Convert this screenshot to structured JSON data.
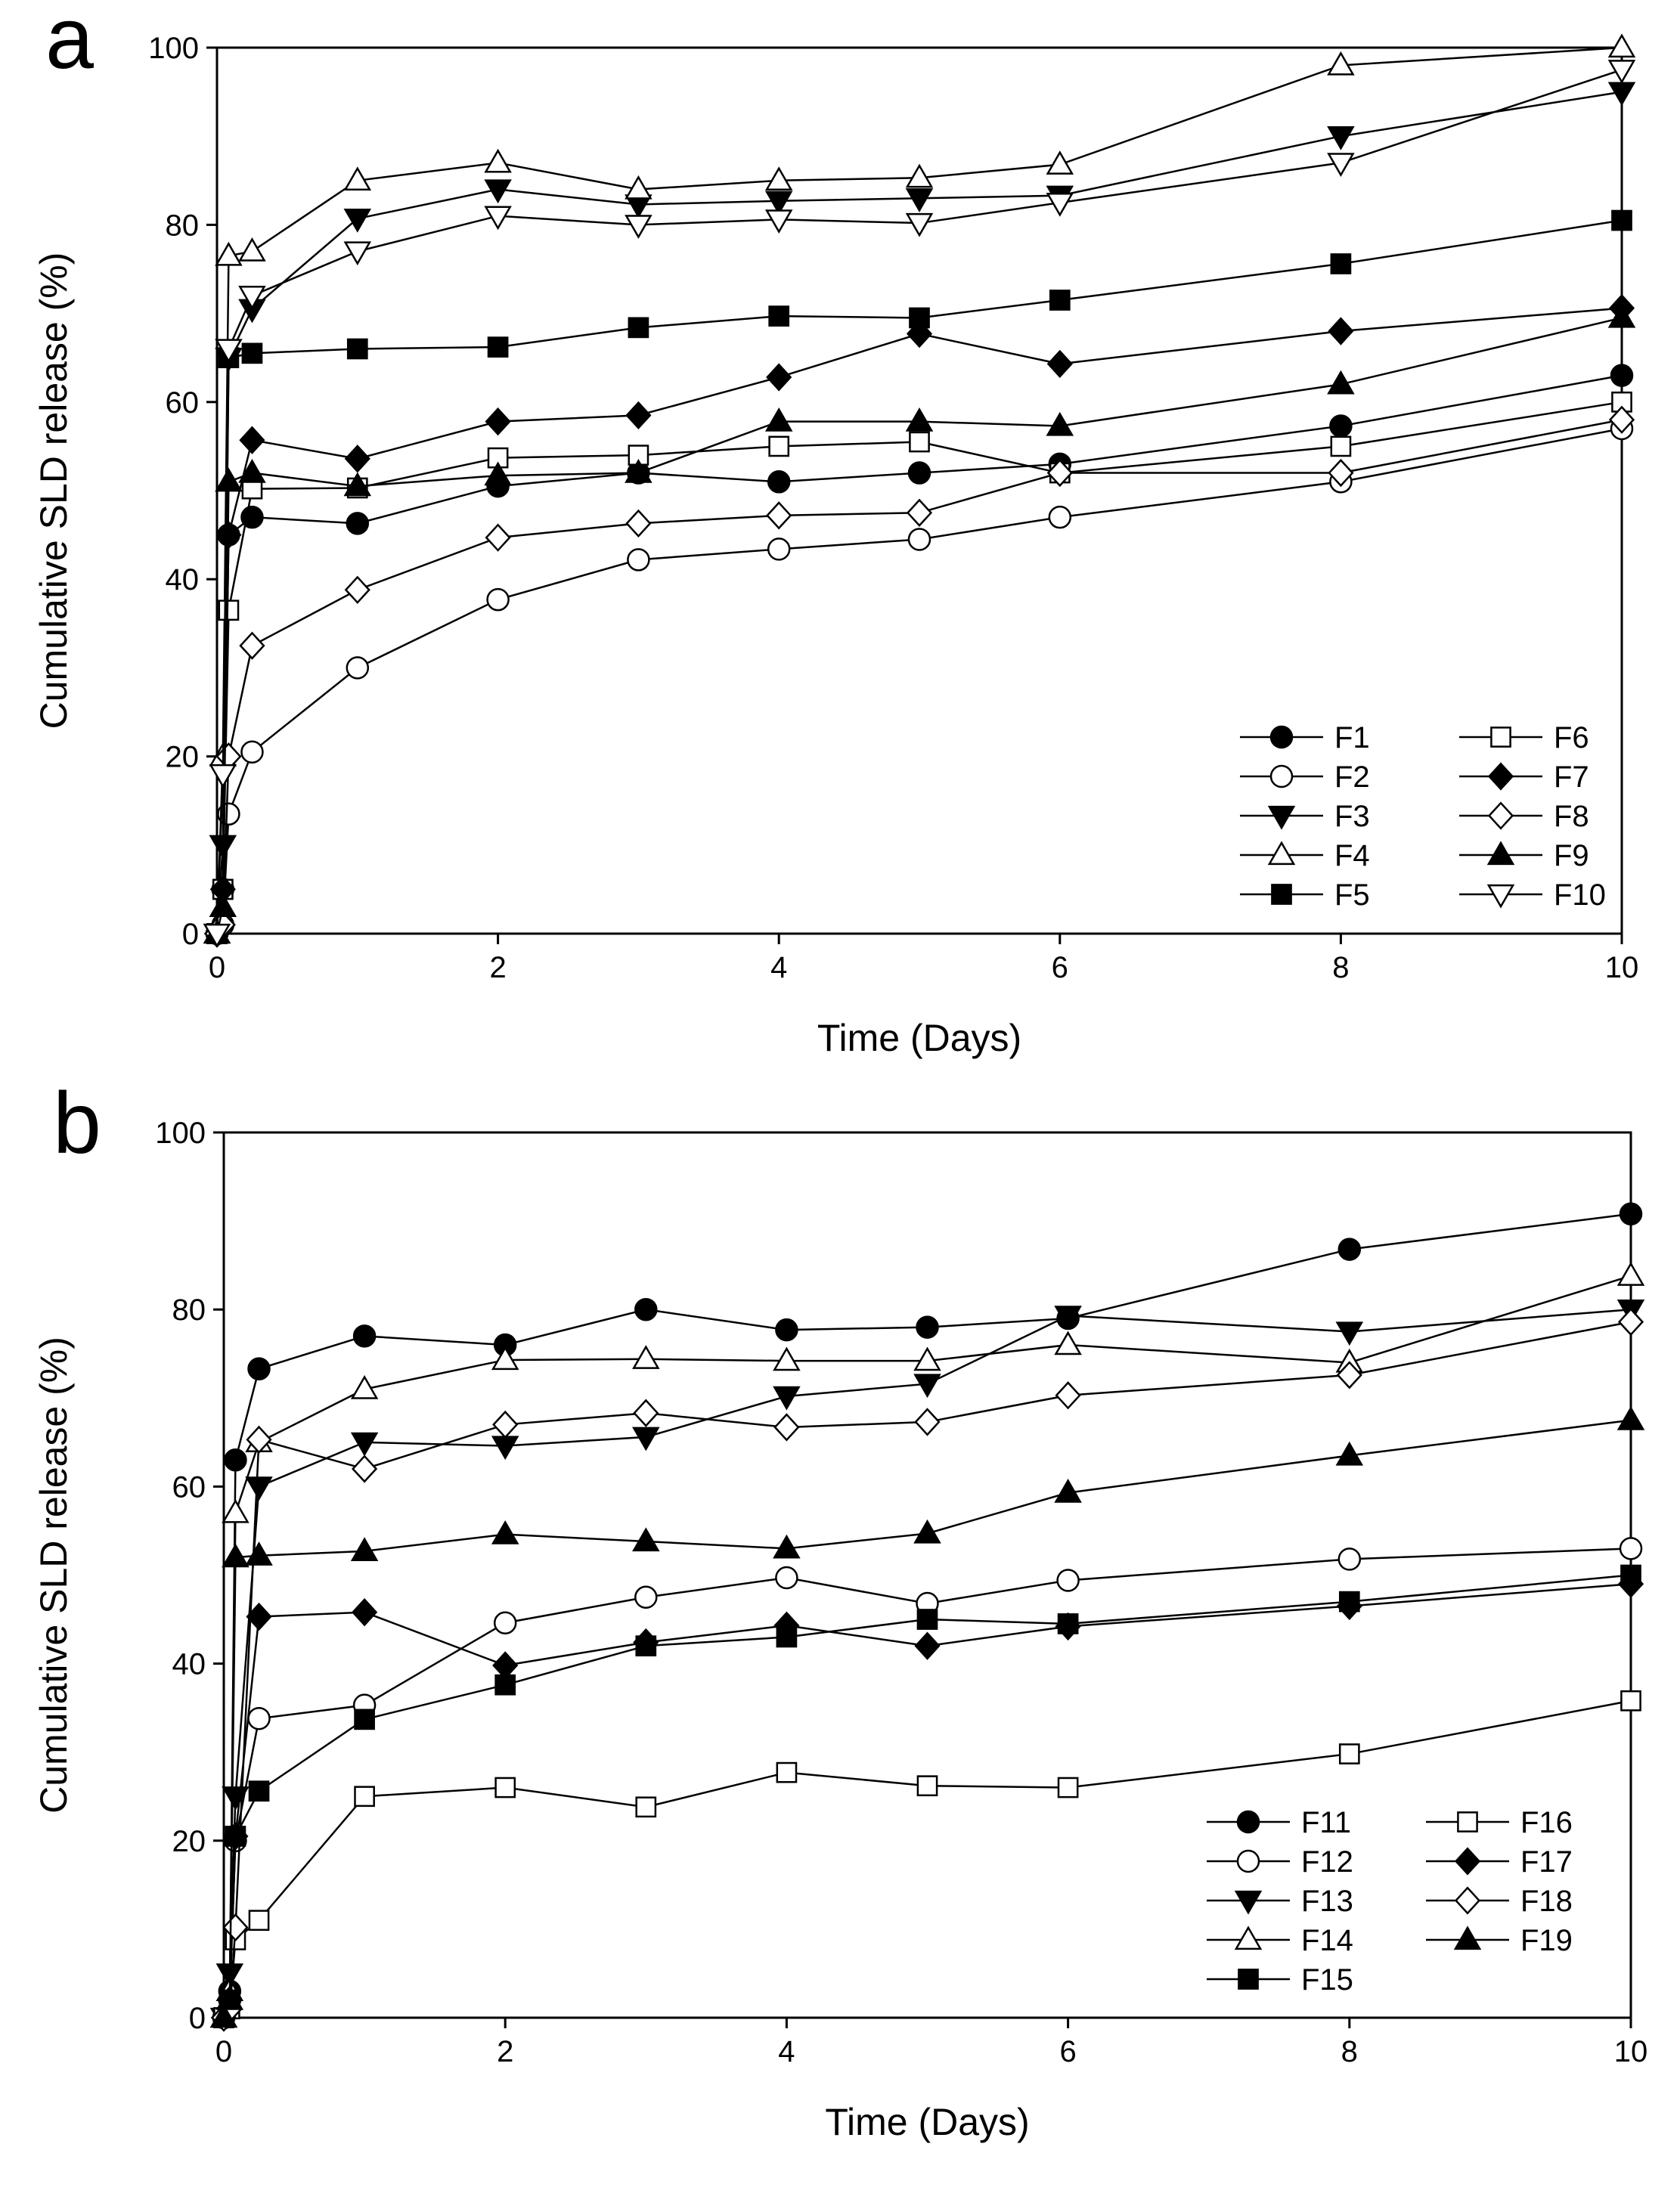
{
  "chart_data": [
    {
      "panel_label": "a",
      "type": "line",
      "xlabel": "Time (Days)",
      "ylabel": "Cumulative SLD release (%)",
      "xlim": [
        0,
        10
      ],
      "ylim": [
        0,
        100
      ],
      "xticks": [
        0,
        2,
        4,
        6,
        8,
        10
      ],
      "yticks": [
        0,
        20,
        40,
        60,
        80,
        100
      ],
      "legend_placement": "bottom-right",
      "x": [
        0,
        0.042,
        0.083,
        0.25,
        1,
        2,
        3,
        4,
        5,
        6,
        8,
        10
      ],
      "series": [
        {
          "name": "F1",
          "marker": "circle",
          "filled": true,
          "values": [
            0,
            5,
            45,
            47,
            46.3,
            50.5,
            52,
            51,
            52,
            53,
            57.3,
            63
          ]
        },
        {
          "name": "F2",
          "marker": "circle",
          "filled": false,
          "values": [
            0,
            1,
            13.5,
            20.5,
            30,
            37.7,
            42.2,
            43.4,
            44.5,
            47,
            51,
            57
          ]
        },
        {
          "name": "F3",
          "marker": "triangle-down",
          "filled": true,
          "values": [
            0,
            10,
            65,
            70.5,
            80.7,
            84,
            82.3,
            82.7,
            83,
            83.3,
            90,
            95
          ]
        },
        {
          "name": "F4",
          "marker": "triangle-up",
          "filled": false,
          "values": [
            0,
            20,
            76.5,
            77,
            85,
            87,
            84,
            85,
            85.3,
            86.8,
            98,
            100
          ]
        },
        {
          "name": "F5",
          "marker": "square",
          "filled": true,
          "values": [
            0,
            5,
            65,
            65.5,
            66,
            66.2,
            68.4,
            69.7,
            69.5,
            71.5,
            75.6,
            80.5
          ]
        },
        {
          "name": "F6",
          "marker": "square",
          "filled": false,
          "values": [
            0,
            5,
            36.5,
            50.2,
            50.3,
            53.7,
            54,
            55,
            55.5,
            52,
            55,
            60
          ]
        },
        {
          "name": "F7",
          "marker": "diamond",
          "filled": true,
          "values": [
            0,
            5,
            45,
            55.7,
            53.6,
            57.8,
            58.5,
            62.8,
            67.7,
            64.3,
            68,
            70.6
          ]
        },
        {
          "name": "F8",
          "marker": "diamond",
          "filled": false,
          "values": [
            0,
            1,
            20,
            32.5,
            38.8,
            44.7,
            46.3,
            47.2,
            47.5,
            52,
            52,
            58
          ]
        },
        {
          "name": "F9",
          "marker": "triangle-up",
          "filled": true,
          "values": [
            0,
            3,
            51,
            52,
            50.5,
            51.7,
            52,
            57.8,
            57.8,
            57.3,
            62,
            69.5
          ]
        },
        {
          "name": "F10",
          "marker": "triangle-down",
          "filled": false,
          "values": [
            0,
            18,
            66,
            72,
            77,
            81,
            80,
            80.6,
            80.2,
            82.5,
            87,
            97.5
          ]
        }
      ]
    },
    {
      "panel_label": "b",
      "type": "line",
      "xlabel": "Time (Days)",
      "ylabel": "Cumulative SLD release (%)",
      "xlim": [
        0,
        10
      ],
      "ylim": [
        0,
        100
      ],
      "xticks": [
        0,
        2,
        4,
        6,
        8,
        10
      ],
      "yticks": [
        0,
        20,
        40,
        60,
        80,
        100
      ],
      "legend_placement": "bottom-right",
      "x": [
        0,
        0.042,
        0.083,
        0.25,
        1,
        2,
        3,
        4,
        5,
        6,
        8,
        10
      ],
      "series": [
        {
          "name": "F11",
          "marker": "circle",
          "filled": true,
          "values": [
            0,
            3,
            63,
            73.3,
            77,
            76,
            80,
            77.7,
            78,
            79,
            86.8,
            90.8
          ]
        },
        {
          "name": "F12",
          "marker": "circle",
          "filled": false,
          "values": [
            0,
            2,
            20,
            33.8,
            35.3,
            44.6,
            47.5,
            49.7,
            46.8,
            49.4,
            51.8,
            53
          ]
        },
        {
          "name": "F13",
          "marker": "triangle-down",
          "filled": true,
          "values": [
            0,
            5,
            25,
            60,
            65,
            64.6,
            65.6,
            70.2,
            71.6,
            79.3,
            77.5,
            80
          ]
        },
        {
          "name": "F14",
          "marker": "triangle-up",
          "filled": false,
          "values": [
            0,
            3,
            57,
            65,
            71,
            74.3,
            74.4,
            74.2,
            74.2,
            76,
            74,
            83.8
          ]
        },
        {
          "name": "F15",
          "marker": "square",
          "filled": true,
          "values": [
            0,
            2,
            20.5,
            25.6,
            33.7,
            37.6,
            42,
            43,
            45,
            44.5,
            47,
            50
          ]
        },
        {
          "name": "F16",
          "marker": "square",
          "filled": false,
          "values": [
            0,
            1,
            8.8,
            11,
            25,
            26,
            23.8,
            27.7,
            26.2,
            26,
            29.8,
            35.8
          ]
        },
        {
          "name": "F17",
          "marker": "diamond",
          "filled": true,
          "values": [
            0,
            2,
            20.5,
            45.3,
            45.8,
            39.8,
            42.4,
            44.3,
            42,
            44.2,
            46.5,
            49
          ]
        },
        {
          "name": "F18",
          "marker": "diamond",
          "filled": false,
          "values": [
            0,
            1,
            10.2,
            65.3,
            62,
            67,
            68.3,
            66.7,
            67.3,
            70.3,
            72.6,
            78.6
          ]
        },
        {
          "name": "F19",
          "marker": "triangle-up",
          "filled": true,
          "values": [
            0,
            2,
            52,
            52.2,
            52.7,
            54.6,
            53.8,
            53,
            54.7,
            59.3,
            63.5,
            67.5
          ]
        }
      ]
    }
  ]
}
